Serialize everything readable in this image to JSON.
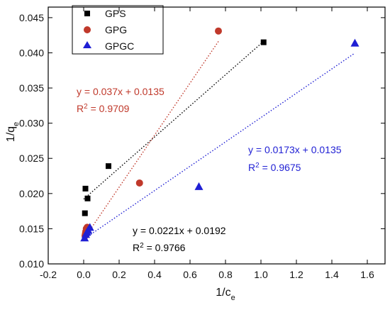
{
  "chart_data": {
    "type": "scatter",
    "xlabel": {
      "base": "1/c",
      "sub": "e"
    },
    "ylabel": {
      "base": "1/q",
      "sub": "e"
    },
    "xlim": [
      -0.2,
      1.7
    ],
    "ylim": [
      0.01,
      0.0465
    ],
    "xticks": [
      -0.2,
      0.0,
      0.2,
      0.4,
      0.6,
      0.8,
      1.0,
      1.2,
      1.4,
      1.6
    ],
    "xtick_labels": [
      "-0.2",
      "0.0",
      "0.2",
      "0.4",
      "0.6",
      "0.8",
      "1.0",
      "1.2",
      "1.4",
      "1.6"
    ],
    "yticks": [
      0.01,
      0.015,
      0.02,
      0.025,
      0.03,
      0.035,
      0.04,
      0.045
    ],
    "ytick_labels": [
      "0.010",
      "0.015",
      "0.020",
      "0.025",
      "0.030",
      "0.035",
      "0.040",
      "0.045"
    ],
    "grid": false,
    "legend": {
      "position": "top-left",
      "entries": [
        "GPS",
        "GPG",
        "GPGC"
      ]
    },
    "series": [
      {
        "name": "GPS",
        "color": "#000000",
        "marker": "square",
        "x": [
          0.007,
          0.01,
          0.022,
          0.14,
          1.015
        ],
        "y": [
          0.0172,
          0.0207,
          0.0193,
          0.0239,
          0.0415
        ],
        "fit": {
          "slope": 0.0221,
          "intercept": 0.0192,
          "x_range": [
            0.0,
            1.015
          ],
          "color": "#000000"
        },
        "equation": "y = 0.0221x + 0.0192",
        "r2": {
          "prefix": "R",
          "sup": "2",
          "value": " = 0.9766"
        }
      },
      {
        "name": "GPG",
        "color": "#c0392b",
        "marker": "circle",
        "x": [
          0.008,
          0.01,
          0.012,
          0.015,
          0.02,
          0.315,
          0.76
        ],
        "y": [
          0.014,
          0.0143,
          0.0146,
          0.015,
          0.0152,
          0.0215,
          0.0431
        ],
        "fit": {
          "slope": 0.037,
          "intercept": 0.0135,
          "x_range": [
            0.0,
            0.76
          ],
          "color": "#c0392b"
        },
        "equation": "y = 0.037x + 0.0135",
        "r2": {
          "prefix": "R",
          "sup": "2",
          "value": " = 0.9709"
        }
      },
      {
        "name": "GPGC",
        "color": "#1f1fd4",
        "marker": "triangle",
        "x": [
          0.005,
          0.012,
          0.018,
          0.025,
          0.035,
          0.65,
          1.53
        ],
        "y": [
          0.0137,
          0.0142,
          0.0145,
          0.0148,
          0.0152,
          0.021,
          0.0414
        ],
        "fit": {
          "slope": 0.0173,
          "intercept": 0.0135,
          "x_range": [
            0.0,
            1.53
          ],
          "color": "#1f1fd4"
        },
        "equation": "y = 0.0173x + 0.0135",
        "r2": {
          "prefix": "R",
          "sup": "2",
          "value": " = 0.9675"
        }
      }
    ]
  }
}
